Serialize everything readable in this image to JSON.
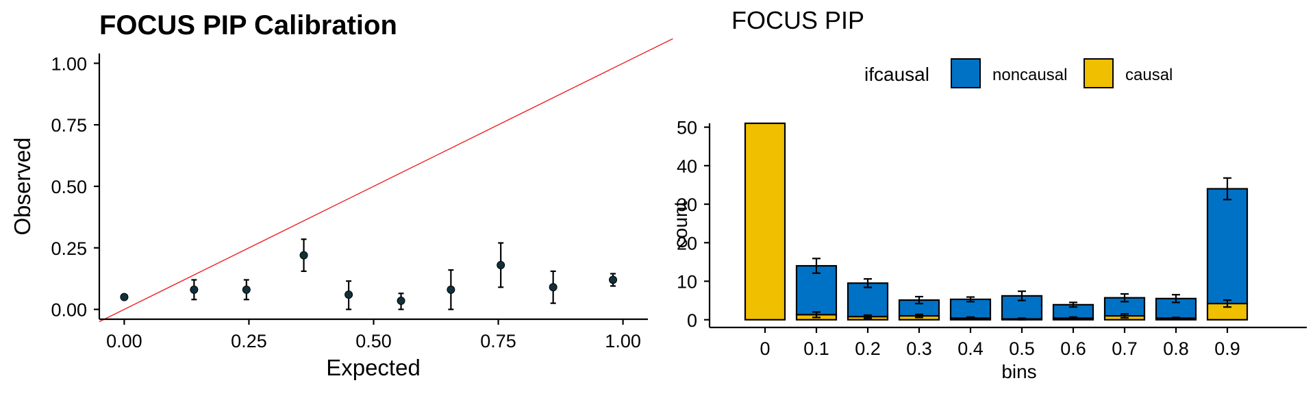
{
  "chart_data": [
    {
      "type": "scatter",
      "title": "FOCUS PIP Calibration",
      "xlabel": "Expected",
      "ylabel": "Observed",
      "xlim": [
        -0.05,
        1.05
      ],
      "ylim": [
        -0.04,
        1.04
      ],
      "x_ticks": [
        "0.00",
        "0.25",
        "0.50",
        "0.75",
        "1.00"
      ],
      "y_ticks": [
        "0.00",
        "0.25",
        "0.50",
        "0.75",
        "1.00"
      ],
      "x_tick_values": [
        0,
        0.25,
        0.5,
        0.75,
        1.0
      ],
      "y_tick_values": [
        0,
        0.25,
        0.5,
        0.75,
        1.0
      ],
      "reference_line": {
        "slope": 1,
        "intercept": 0,
        "color": "#ee2222"
      },
      "point_color": "#12303a",
      "points": [
        {
          "x": 0.0,
          "y": 0.05,
          "ymin": 0.05,
          "ymax": 0.05
        },
        {
          "x": 0.14,
          "y": 0.08,
          "ymin": 0.04,
          "ymax": 0.12
        },
        {
          "x": 0.245,
          "y": 0.08,
          "ymin": 0.04,
          "ymax": 0.12
        },
        {
          "x": 0.36,
          "y": 0.22,
          "ymin": 0.155,
          "ymax": 0.285
        },
        {
          "x": 0.45,
          "y": 0.06,
          "ymin": 0.0,
          "ymax": 0.115
        },
        {
          "x": 0.555,
          "y": 0.035,
          "ymin": 0.0,
          "ymax": 0.065
        },
        {
          "x": 0.655,
          "y": 0.08,
          "ymin": 0.0,
          "ymax": 0.16
        },
        {
          "x": 0.755,
          "y": 0.18,
          "ymin": 0.09,
          "ymax": 0.27
        },
        {
          "x": 0.86,
          "y": 0.09,
          "ymin": 0.025,
          "ymax": 0.155
        },
        {
          "x": 0.98,
          "y": 0.12,
          "ymin": 0.095,
          "ymax": 0.145
        }
      ],
      "grid": false
    },
    {
      "type": "bar",
      "stacked": true,
      "title": "FOCUS PIP",
      "xlabel": "bins",
      "ylabel": "count",
      "categories": [
        "0",
        "0.1",
        "0.2",
        "0.3",
        "0.4",
        "0.5",
        "0.6",
        "0.7",
        "0.8",
        "0.9"
      ],
      "ylim": [
        -2,
        51
      ],
      "y_ticks": [
        "0",
        "10",
        "20",
        "30",
        "40",
        "50"
      ],
      "y_tick_values": [
        0,
        10,
        20,
        30,
        40,
        50
      ],
      "legend": {
        "title": "ifcausal",
        "position": "top"
      },
      "series": [
        {
          "name": "causal",
          "color": "#f0c000",
          "values": [
            51,
            1.3,
            0.8,
            1.0,
            0.4,
            0.2,
            0.4,
            1.0,
            0.4,
            4.2
          ],
          "err": [
            0,
            0.7,
            0.4,
            0.4,
            0.3,
            0.2,
            0.3,
            0.5,
            0.2,
            0.9
          ]
        },
        {
          "name": "noncausal",
          "color": "#0072c6",
          "values": [
            0,
            12.7,
            8.7,
            4.1,
            4.9,
            6.0,
            3.5,
            4.7,
            5.1,
            29.8
          ],
          "err": [
            0,
            1.9,
            1.1,
            0.9,
            0.6,
            1.2,
            0.6,
            1.0,
            1.0,
            2.8
          ]
        }
      ],
      "grid": false
    }
  ]
}
